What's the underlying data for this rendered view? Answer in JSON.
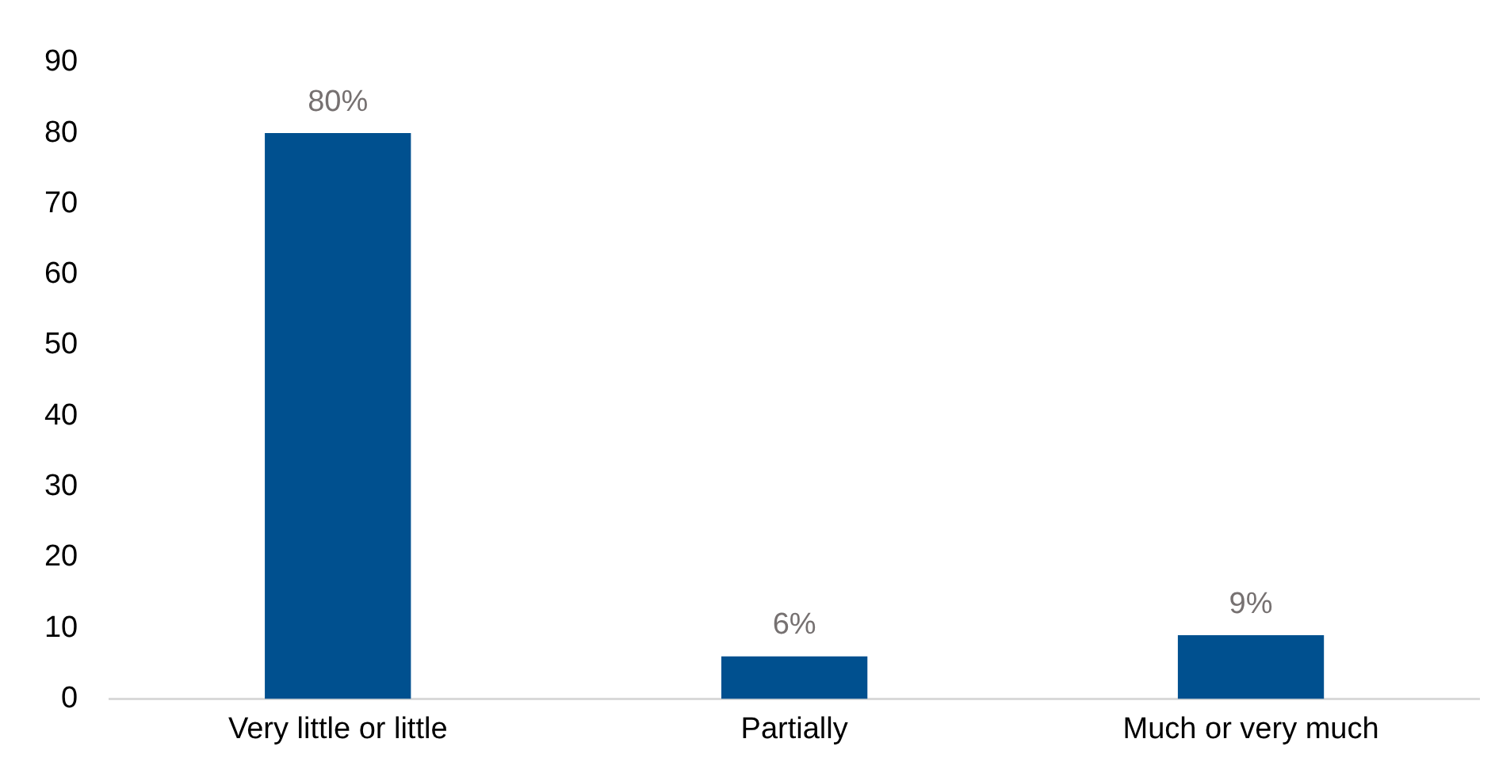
{
  "chart_data": {
    "type": "bar",
    "categories": [
      "Very little or little",
      "Partially",
      "Much or very much"
    ],
    "values": [
      80,
      6,
      9
    ],
    "value_labels": [
      "80%",
      "6%",
      "9%"
    ],
    "color": "#00508f",
    "ylim": [
      0,
      90
    ],
    "yticks": [
      0,
      10,
      20,
      30,
      40,
      50,
      60,
      70,
      80,
      90
    ],
    "grid": false,
    "legend": false
  }
}
